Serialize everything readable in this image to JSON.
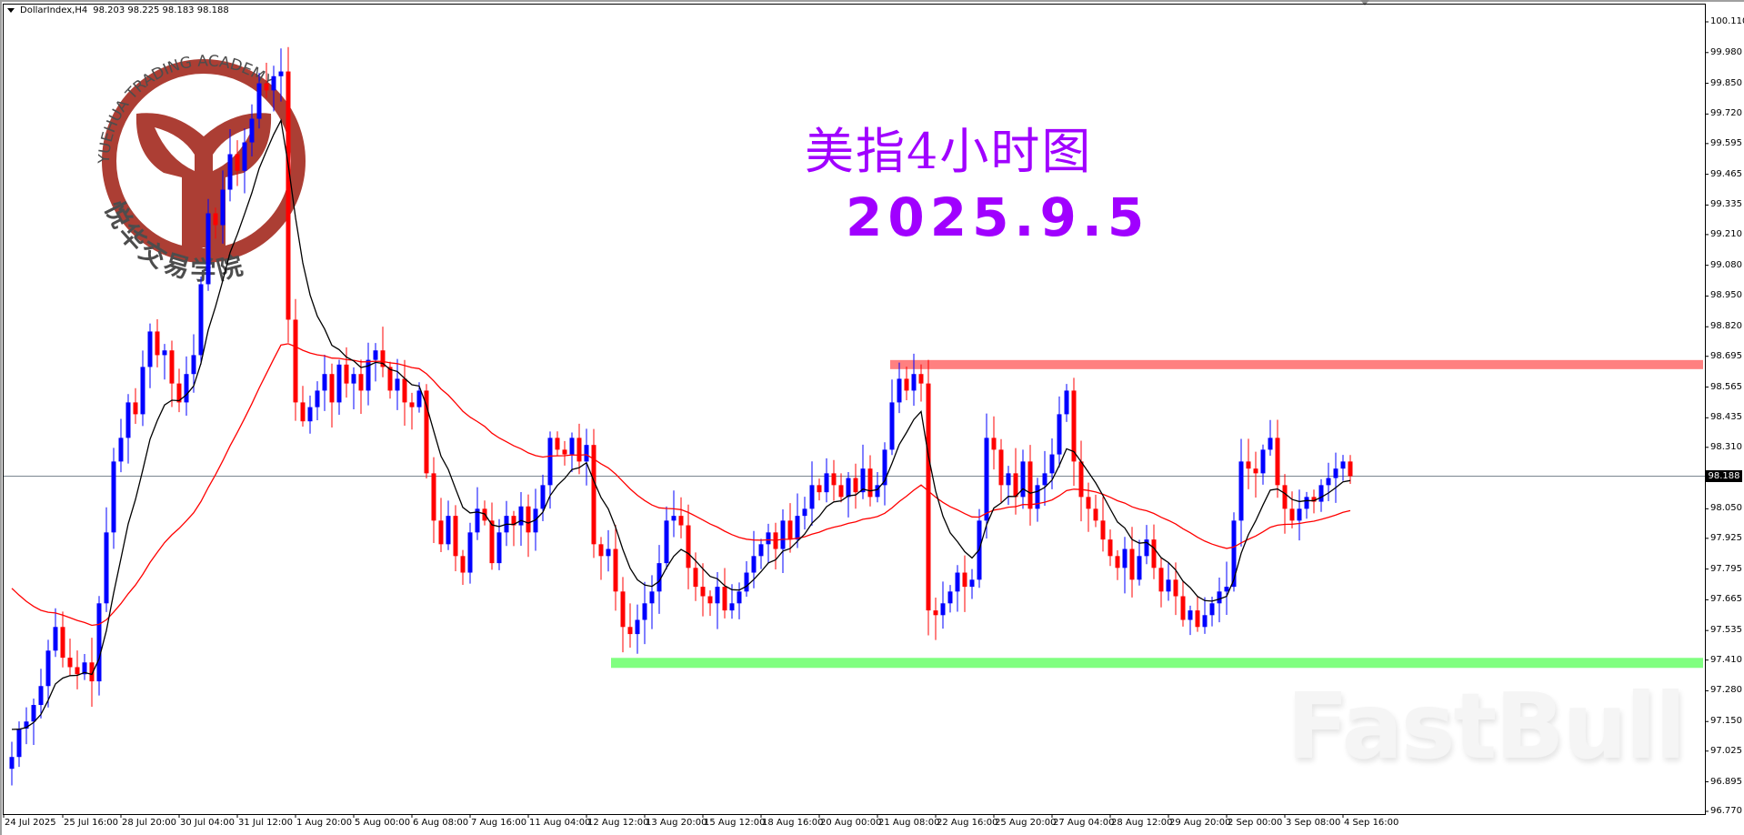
{
  "header": {
    "symbol": "DollarIndex,H4",
    "ohlc": "98.203 98.225 98.183 98.188"
  },
  "annotation": {
    "title": "美指4小时图",
    "date": "2025.9.5"
  },
  "watermarks": {
    "logo_en": "YUEHUA TRADING ACADEMY",
    "logo_cn": "悦华交易学院",
    "fastbull": "FastBull"
  },
  "colors": {
    "bull": "#0000ff",
    "bear": "#ff0000",
    "fast_ma": "#000000",
    "slow_ma": "#ff0000",
    "resistance": "#ff8080",
    "support": "#80ff80",
    "title": "#a000ff",
    "logo": "#a8342a"
  },
  "chart_data": {
    "type": "candlestick",
    "timeframe": "H4",
    "current_price": "98.188",
    "ylim": [
      96.77,
      100.11
    ],
    "y_ticks": [
      "100.110",
      "99.980",
      "99.850",
      "99.720",
      "99.595",
      "99.465",
      "99.335",
      "99.210",
      "99.080",
      "98.950",
      "98.820",
      "98.695",
      "98.565",
      "98.435",
      "98.310",
      "98.050",
      "97.925",
      "97.795",
      "97.665",
      "97.535",
      "97.410",
      "97.280",
      "97.150",
      "97.025",
      "96.895",
      "96.770"
    ],
    "x_ticks": [
      "24 Jul 2025",
      "25 Jul 16:00",
      "28 Jul 20:00",
      "30 Jul 04:00",
      "31 Jul 12:00",
      "1 Aug 20:00",
      "5 Aug 00:00",
      "6 Aug 08:00",
      "7 Aug 16:00",
      "11 Aug 04:00",
      "12 Aug 12:00",
      "13 Aug 20:00",
      "15 Aug 12:00",
      "18 Aug 16:00",
      "20 Aug 00:00",
      "21 Aug 08:00",
      "22 Aug 16:00",
      "25 Aug 20:00",
      "27 Aug 04:00",
      "28 Aug 12:00",
      "29 Aug 20:00",
      "2 Sep 00:00",
      "3 Sep 08:00",
      "4 Sep 16:00"
    ],
    "resistance_level": 98.66,
    "support_level": 97.4,
    "closes": [
      97.0,
      97.12,
      97.15,
      97.22,
      97.3,
      97.45,
      97.55,
      97.42,
      97.38,
      97.35,
      97.4,
      97.32,
      97.65,
      97.95,
      98.25,
      98.35,
      98.5,
      98.45,
      98.65,
      98.8,
      98.7,
      98.72,
      98.58,
      98.5,
      98.62,
      98.7,
      99.0,
      99.3,
      99.25,
      99.4,
      99.55,
      99.48,
      99.6,
      99.7,
      99.85,
      99.82,
      99.88,
      99.9,
      98.85,
      98.5,
      98.42,
      98.48,
      98.55,
      98.62,
      98.5,
      98.66,
      98.58,
      98.62,
      98.55,
      98.68,
      98.72,
      98.65,
      98.55,
      98.6,
      98.5,
      98.48,
      98.55,
      98.2,
      98.0,
      97.9,
      98.02,
      97.85,
      97.78,
      97.95,
      98.05,
      98.0,
      97.82,
      97.95,
      98.02,
      97.98,
      98.06,
      97.95,
      98.05,
      98.15,
      98.35,
      98.3,
      98.28,
      98.35,
      98.25,
      98.32,
      97.9,
      97.85,
      97.88,
      97.7,
      97.55,
      97.52,
      97.58,
      97.65,
      97.7,
      97.82,
      98.0,
      98.02,
      97.98,
      97.8,
      97.72,
      97.68,
      97.65,
      97.72,
      97.62,
      97.65,
      97.7,
      97.78,
      97.85,
      97.9,
      97.95,
      97.88,
      98.0,
      97.92,
      98.02,
      98.05,
      98.15,
      98.12,
      98.2,
      98.15,
      98.1,
      98.18,
      98.12,
      98.22,
      98.1,
      98.15,
      98.3,
      98.5,
      98.6,
      98.55,
      98.62,
      98.58,
      97.62,
      97.6,
      97.65,
      97.7,
      97.78,
      97.72,
      97.75,
      98.0,
      98.35,
      98.3,
      98.15,
      98.2,
      98.1,
      98.25,
      98.05,
      98.15,
      98.2,
      98.28,
      98.45,
      98.55,
      98.25,
      98.1,
      98.05,
      98.0,
      97.92,
      97.85,
      97.8,
      97.88,
      97.75,
      97.85,
      97.92,
      97.8,
      97.7,
      97.75,
      97.68,
      97.58,
      97.62,
      97.55,
      97.6,
      97.65,
      97.7,
      97.72,
      98.0,
      98.25,
      98.22,
      98.2,
      98.3,
      98.35,
      98.15,
      98.05,
      98.0,
      98.05,
      98.1,
      98.08,
      98.15,
      98.18,
      98.22,
      98.25,
      98.188
    ]
  }
}
